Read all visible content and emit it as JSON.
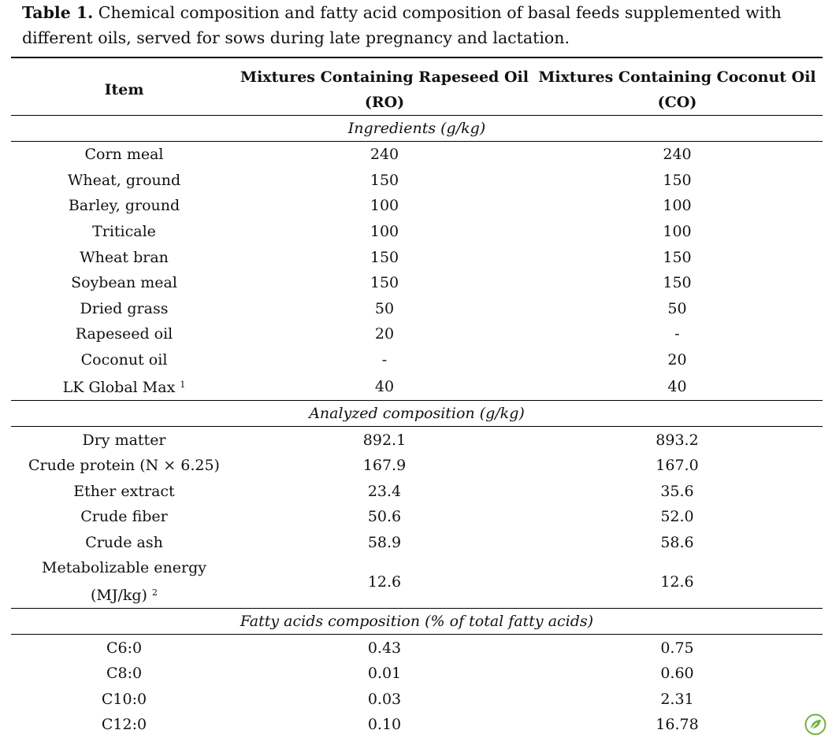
{
  "caption": {
    "label": "Table 1.",
    "text": " Chemical composition and fatty acid composition of basal feeds supplemented with different oils, served for sows during late pregnancy and lactation."
  },
  "header": {
    "item": "Item",
    "ro_line1": "Mixtures Containing Rapeseed Oil",
    "ro_line2": "(RO)",
    "co_line1": "Mixtures Containing Coconut Oil",
    "co_line2": "(CO)"
  },
  "sections": {
    "ingredients": "Ingredients (g/kg)",
    "analyzed": "Analyzed composition (g/kg)",
    "fatty": "Fatty acids composition (% of total fatty acids)"
  },
  "ingredients": [
    {
      "item": "Corn meal",
      "ro": "240",
      "co": "240"
    },
    {
      "item": "Wheat, ground",
      "ro": "150",
      "co": "150"
    },
    {
      "item": "Barley, ground",
      "ro": "100",
      "co": "100"
    },
    {
      "item": "Triticale",
      "ro": "100",
      "co": "100"
    },
    {
      "item": "Wheat bran",
      "ro": "150",
      "co": "150"
    },
    {
      "item": "Soybean meal",
      "ro": "150",
      "co": "150"
    },
    {
      "item": "Dried grass",
      "ro": "50",
      "co": "50"
    },
    {
      "item": "Rapeseed oil",
      "ro": "20",
      "co": "-"
    },
    {
      "item": "Coconut oil",
      "ro": "-",
      "co": "20"
    },
    {
      "item": "LK Global Max",
      "sup": "1",
      "ro": "40",
      "co": "40"
    }
  ],
  "analyzed": [
    {
      "item": "Dry matter",
      "ro": "892.1",
      "co": "893.2"
    },
    {
      "item": "Crude protein (N × 6.25)",
      "ro": "167.9",
      "co": "167.0"
    },
    {
      "item": "Ether extract",
      "ro": "23.4",
      "co": "35.6"
    },
    {
      "item": "Crude fiber",
      "ro": "50.6",
      "co": "52.0"
    },
    {
      "item": "Crude ash",
      "ro": "58.9",
      "co": "58.6"
    }
  ],
  "metabolizable": {
    "line1": "Metabolizable energy",
    "line2": "(MJ/kg)",
    "sup": "2",
    "ro": "12.6",
    "co": "12.6"
  },
  "fatty": [
    {
      "item": "C6:0",
      "ro": "0.43",
      "co": "0.75"
    },
    {
      "item": "C8:0",
      "ro": "0.01",
      "co": "0.60"
    },
    {
      "item": "C10:0",
      "ro": "0.03",
      "co": "2.31"
    },
    {
      "item": "C12:0",
      "ro": "0.10",
      "co": "16.78"
    }
  ],
  "colors": {
    "logo": "#6fb23f"
  }
}
